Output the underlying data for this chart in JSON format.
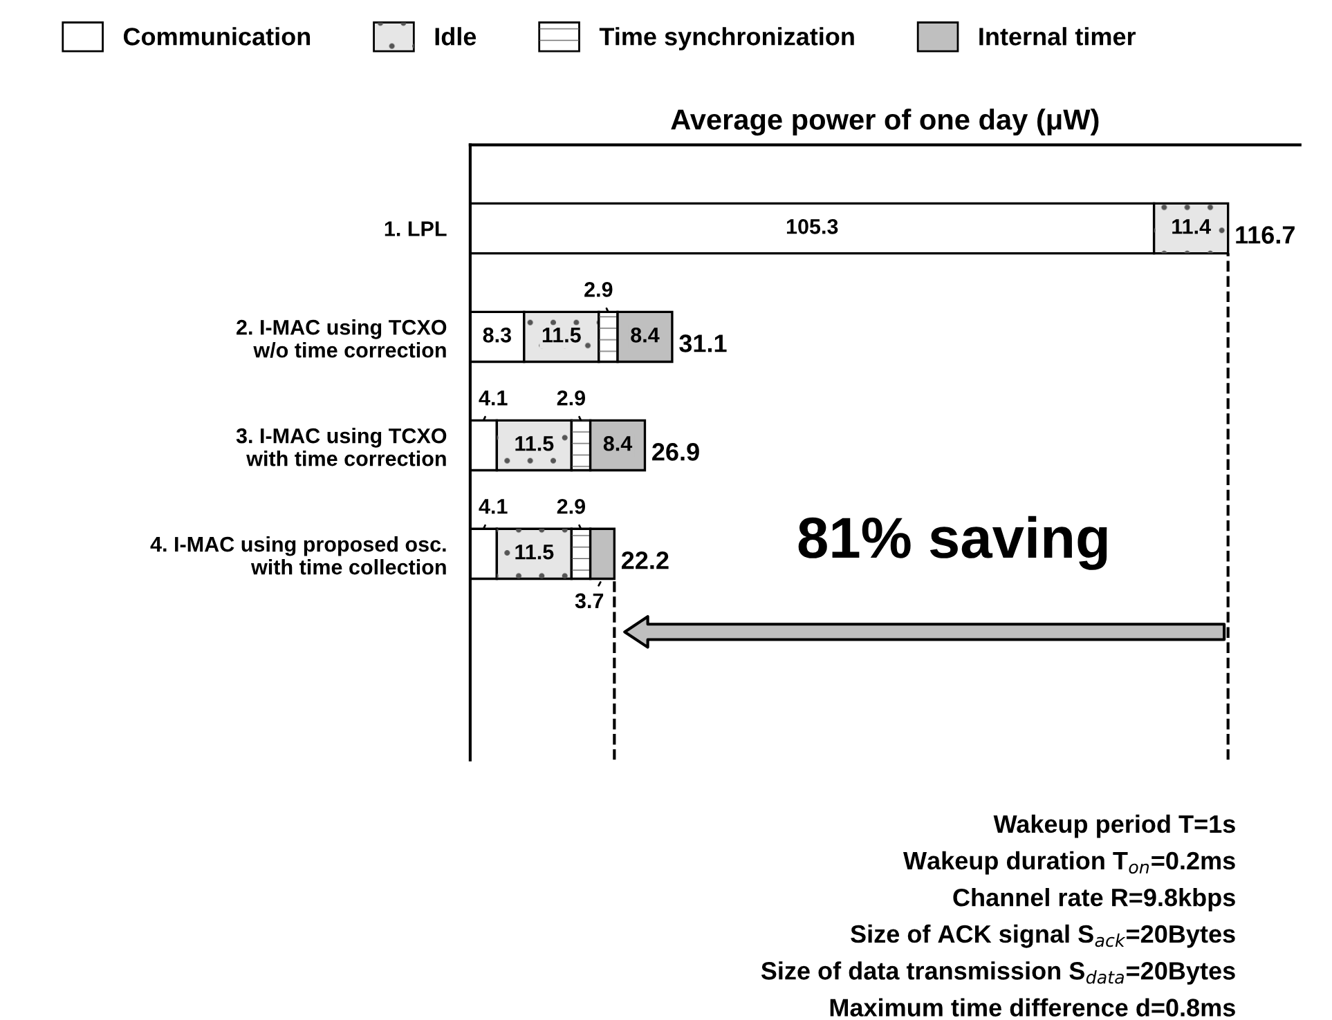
{
  "chart_data": {
    "type": "bar",
    "orientation": "horizontal",
    "stacked": true,
    "xlabel": "Average power of one day (μW)",
    "categories": [
      "1. LPL",
      "2. I-MAC using TCXO\nw/o time correction",
      "3. I-MAC using TCXO\nwith time correction",
      "4. I-MAC using proposed osc.\nwith time collection"
    ],
    "series": [
      {
        "name": "Communication",
        "color": "#ffffff",
        "values": [
          105.3,
          8.3,
          4.1,
          4.1
        ]
      },
      {
        "name": "Idle",
        "color": "#e6e6e6",
        "values": [
          11.4,
          11.5,
          11.5,
          11.5
        ]
      },
      {
        "name": "Time synchronization",
        "color": "#ffffff",
        "values": [
          null,
          2.9,
          2.9,
          2.9
        ]
      },
      {
        "name": "Internal timer",
        "color": "#bfbfbf",
        "values": [
          null,
          8.4,
          8.4,
          3.7
        ]
      }
    ],
    "data_labels": true,
    "totals": [
      "116.7",
      "31.1",
      "26.9",
      "22.2"
    ],
    "legend": "top",
    "grid": false,
    "ref_lines": [
      {
        "axis": "x",
        "value": 116.7,
        "line_style": "dashed",
        "color": "#000000"
      },
      {
        "axis": "x",
        "value": 22.2,
        "line_style": "dashed",
        "color": "#000000"
      }
    ],
    "annotations": [
      "81% saving",
      "Wakeup period T=1s",
      "Wakeup duration T$_{on}$=0.2ms",
      "Channel rate R=9.8kbps",
      "Size of ACK signal S$_{ack}$=20Bytes",
      "Size of data transmission S$_{data}$=20Bytes",
      "Maximum time difference d=0.8ms"
    ]
  }
}
